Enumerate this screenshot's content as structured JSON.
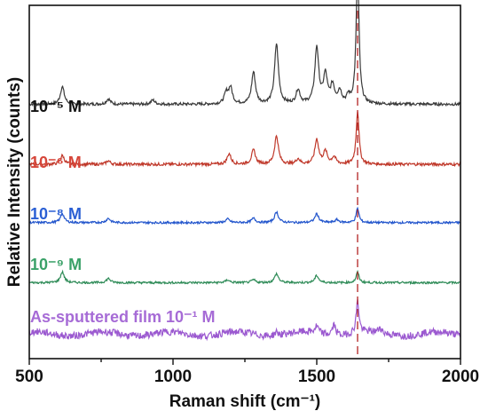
{
  "chart_data": {
    "type": "line",
    "xlabel": "Raman shift (cm⁻¹)",
    "ylabel": "Relative Intensity (counts)",
    "xlim": [
      500,
      2000
    ],
    "xticks": [
      "500",
      "1000",
      "1500",
      "2000"
    ],
    "yticks_shown": false,
    "grid": false,
    "reference_line": {
      "x": 1642,
      "style": "dashed",
      "color": "#b22222"
    },
    "series": [
      {
        "name": "10⁻⁵ M",
        "color": "#3a3a3a",
        "label_color": "#111111",
        "baseline": 0.72,
        "noise": 0.004,
        "peaks": [
          {
            "x": 615,
            "h": 0.05
          },
          {
            "x": 775,
            "h": 0.015
          },
          {
            "x": 930,
            "h": 0.012
          },
          {
            "x": 1185,
            "h": 0.03
          },
          {
            "x": 1200,
            "h": 0.045
          },
          {
            "x": 1280,
            "h": 0.09
          },
          {
            "x": 1360,
            "h": 0.17
          },
          {
            "x": 1435,
            "h": 0.04
          },
          {
            "x": 1500,
            "h": 0.16
          },
          {
            "x": 1530,
            "h": 0.08
          },
          {
            "x": 1555,
            "h": 0.05
          },
          {
            "x": 1580,
            "h": 0.035
          },
          {
            "x": 1610,
            "h": 0.02
          },
          {
            "x": 1642,
            "h": 0.38
          }
        ]
      },
      {
        "name": "10⁻⁶ M",
        "color": "#c0392b",
        "label_color": "#d6463a",
        "baseline": 0.55,
        "noise": 0.004,
        "peaks": [
          {
            "x": 615,
            "h": 0.025
          },
          {
            "x": 775,
            "h": 0.01
          },
          {
            "x": 1195,
            "h": 0.03
          },
          {
            "x": 1280,
            "h": 0.04
          },
          {
            "x": 1360,
            "h": 0.08
          },
          {
            "x": 1435,
            "h": 0.015
          },
          {
            "x": 1500,
            "h": 0.07
          },
          {
            "x": 1530,
            "h": 0.035
          },
          {
            "x": 1560,
            "h": 0.02
          },
          {
            "x": 1642,
            "h": 0.15
          }
        ]
      },
      {
        "name": "10⁻⁸ M",
        "color": "#2255cc",
        "label_color": "#2a5fd4",
        "baseline": 0.385,
        "noise": 0.003,
        "peaks": [
          {
            "x": 615,
            "h": 0.025
          },
          {
            "x": 775,
            "h": 0.012
          },
          {
            "x": 1190,
            "h": 0.01
          },
          {
            "x": 1280,
            "h": 0.012
          },
          {
            "x": 1360,
            "h": 0.03
          },
          {
            "x": 1500,
            "h": 0.025
          },
          {
            "x": 1570,
            "h": 0.008
          },
          {
            "x": 1642,
            "h": 0.04
          }
        ]
      },
      {
        "name": "10⁻⁹ M",
        "color": "#2e8b57",
        "label_color": "#3aa168",
        "baseline": 0.215,
        "noise": 0.003,
        "peaks": [
          {
            "x": 615,
            "h": 0.03
          },
          {
            "x": 775,
            "h": 0.012
          },
          {
            "x": 1190,
            "h": 0.008
          },
          {
            "x": 1280,
            "h": 0.008
          },
          {
            "x": 1360,
            "h": 0.025
          },
          {
            "x": 1500,
            "h": 0.02
          },
          {
            "x": 1642,
            "h": 0.03
          }
        ]
      },
      {
        "name": "As-sputtered film 10⁻¹ M",
        "color": "#9b59d0",
        "label_color": "#a66bd6",
        "baseline": 0.07,
        "noise": 0.01,
        "peaks": [
          {
            "x": 1360,
            "h": 0.01
          },
          {
            "x": 1500,
            "h": 0.02
          },
          {
            "x": 1560,
            "h": 0.03
          },
          {
            "x": 1642,
            "h": 0.09
          },
          {
            "x": 1720,
            "h": 0.015
          }
        ]
      }
    ]
  }
}
